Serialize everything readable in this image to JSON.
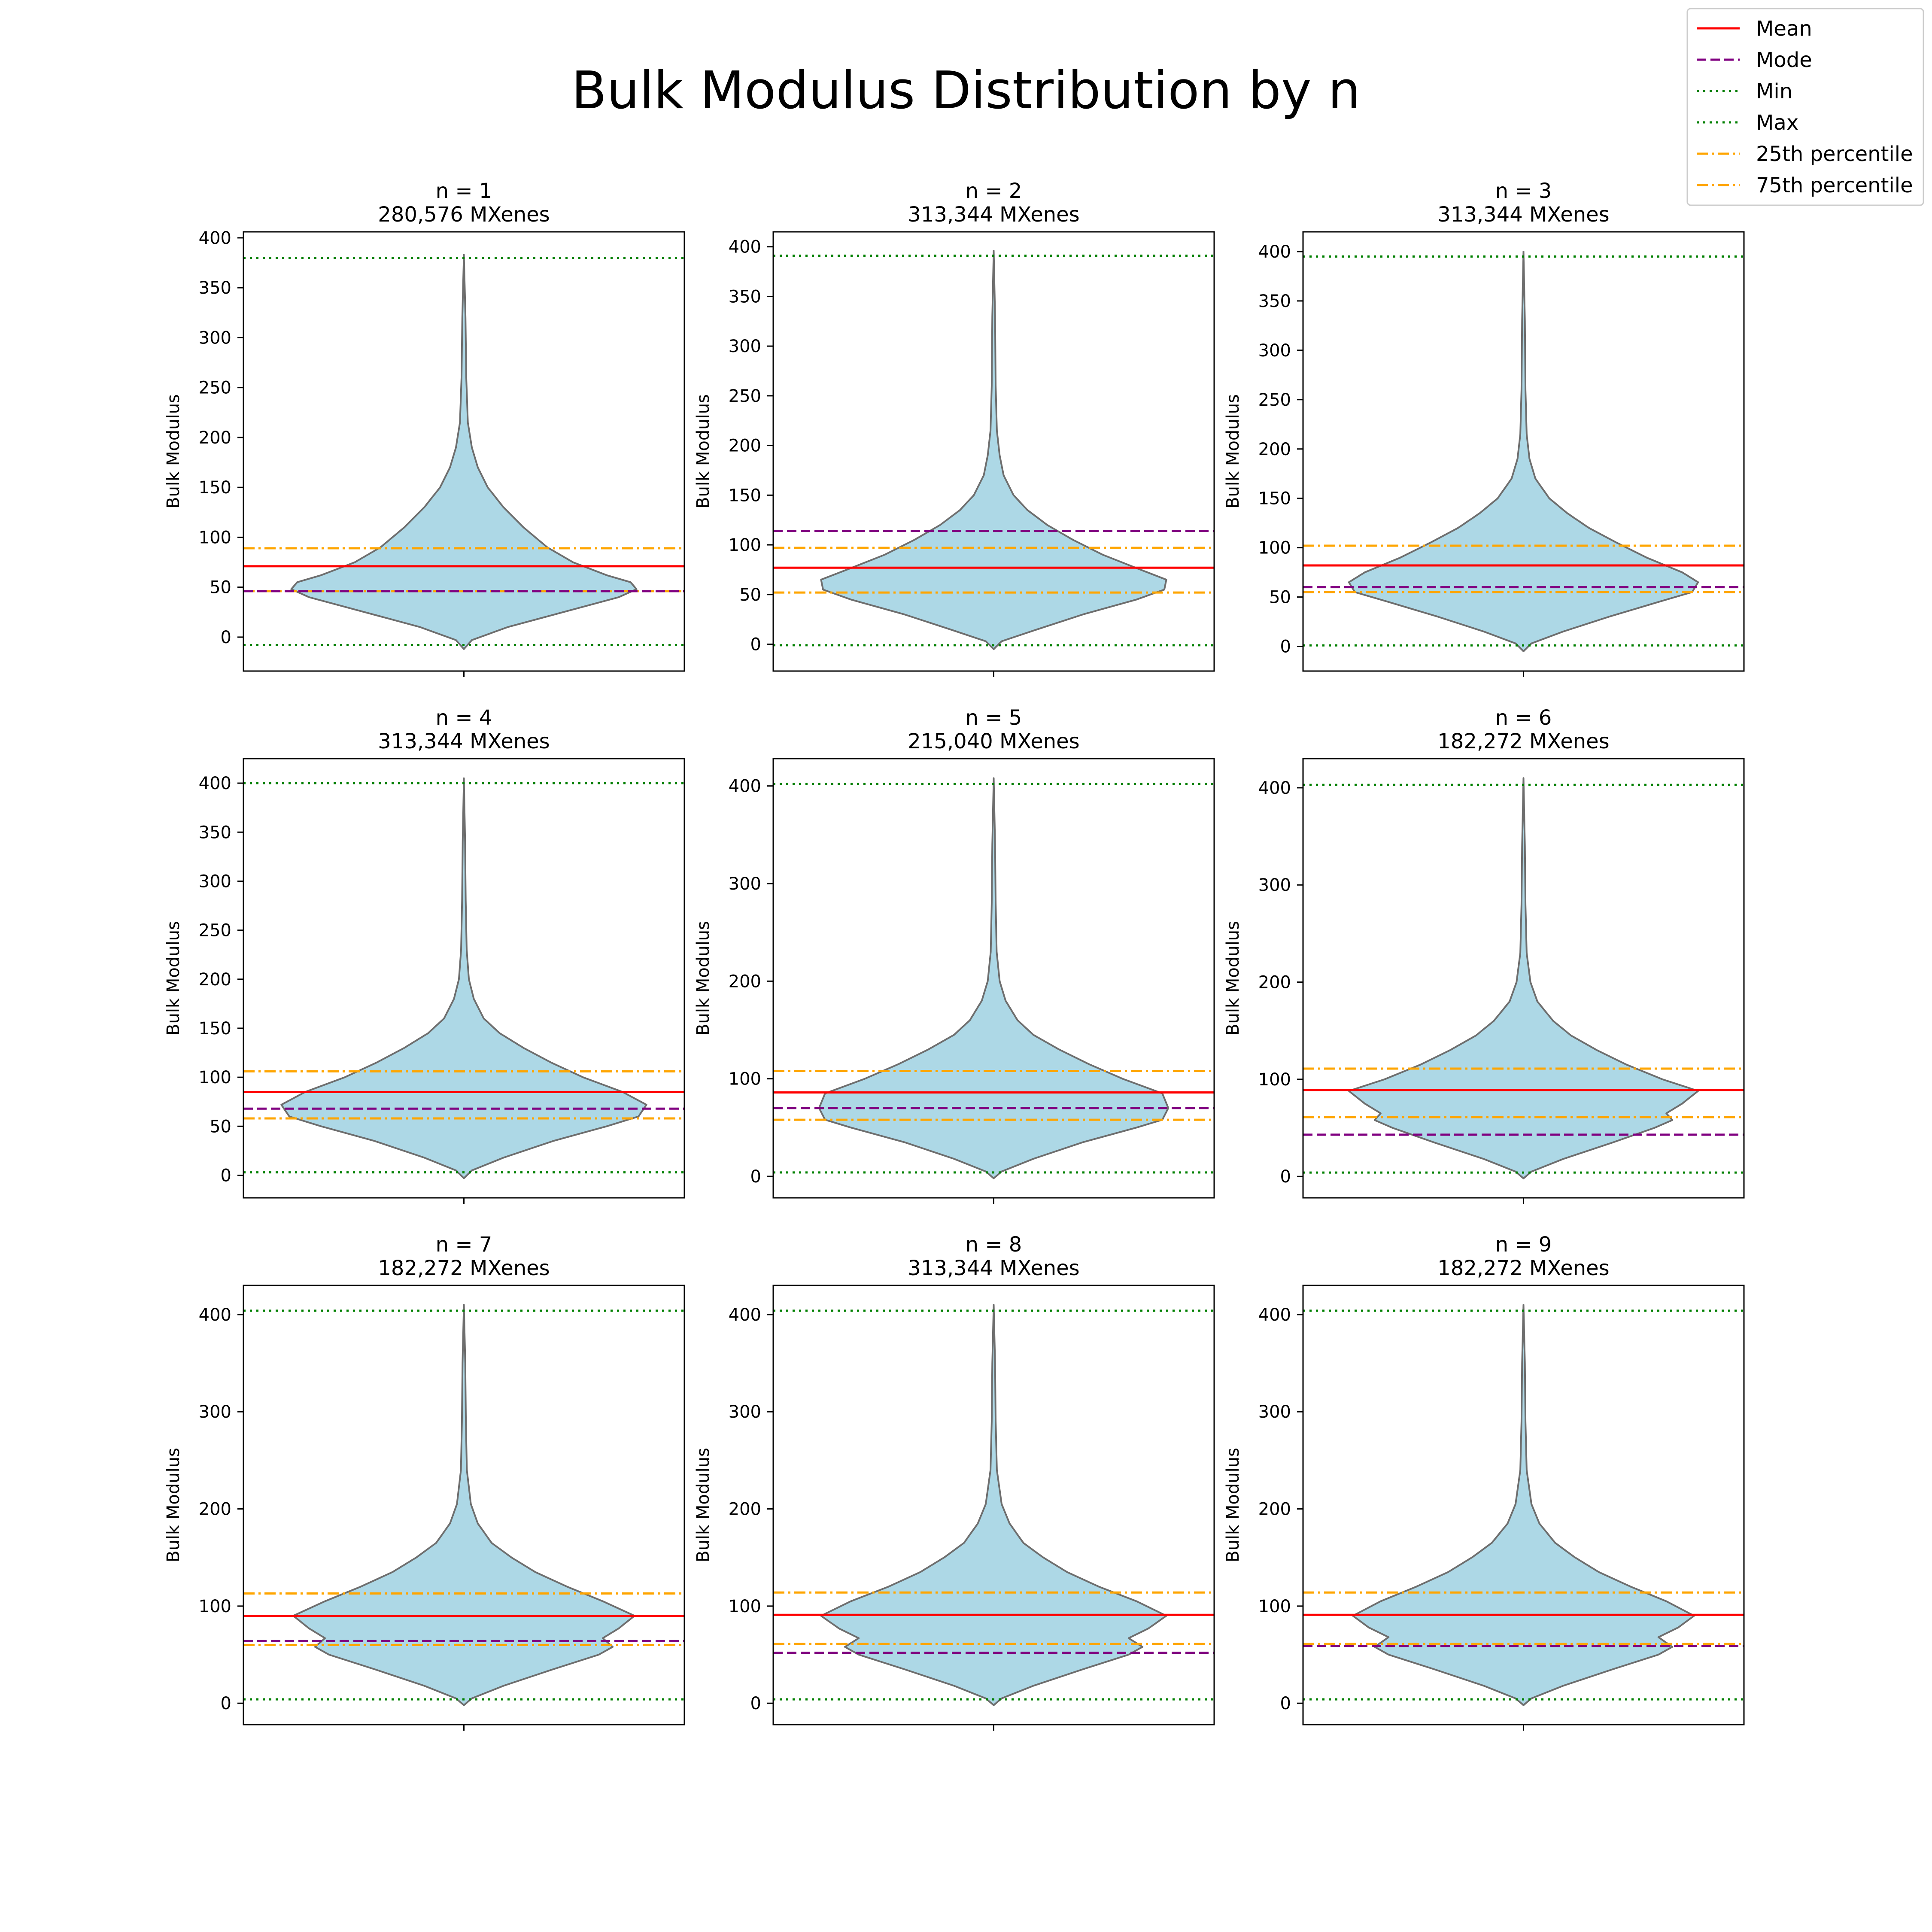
{
  "figure": {
    "suptitle": "Bulk Modulus Distribution by n"
  },
  "legend": {
    "placement": "top-right",
    "entries": [
      {
        "label": "Mean",
        "color": "#ff0000",
        "style": "solid"
      },
      {
        "label": "Mode",
        "color": "#800080",
        "style": "dashed"
      },
      {
        "label": "Min",
        "color": "#008000",
        "style": "dotted"
      },
      {
        "label": "Max",
        "color": "#008000",
        "style": "dotted"
      },
      {
        "label": "25th percentile",
        "color": "#ffa500",
        "style": "dashdot"
      },
      {
        "label": "75th percentile",
        "color": "#ffa500",
        "style": "dashdot"
      }
    ]
  },
  "colors": {
    "violin_fill": "#add8e6",
    "violin_edge": "#6e6e6e",
    "mean": "#ff0000",
    "mode": "#800080",
    "minmax": "#008000",
    "percentile": "#ffa500"
  },
  "chart_data": [
    {
      "type": "violin",
      "title": "n = 1",
      "subtitle": "280,576 MXenes",
      "ylabel": "Bulk Modulus",
      "ylim": [
        -34,
        406
      ],
      "yticks": [
        0,
        50,
        100,
        150,
        200,
        250,
        300,
        350,
        400
      ],
      "grid": false,
      "min": -8,
      "max": 380,
      "mean": 71,
      "mode": 46,
      "p25": 46,
      "p75": 89,
      "shape": [
        [
          -12,
          0.0
        ],
        [
          -3,
          0.04
        ],
        [
          10,
          0.22
        ],
        [
          25,
          0.5
        ],
        [
          40,
          0.78
        ],
        [
          48,
          0.87
        ],
        [
          55,
          0.84
        ],
        [
          62,
          0.72
        ],
        [
          75,
          0.55
        ],
        [
          90,
          0.42
        ],
        [
          110,
          0.3
        ],
        [
          130,
          0.2
        ],
        [
          150,
          0.12
        ],
        [
          170,
          0.07
        ],
        [
          190,
          0.04
        ],
        [
          215,
          0.02
        ],
        [
          260,
          0.012
        ],
        [
          320,
          0.008
        ],
        [
          383,
          0.0
        ]
      ]
    },
    {
      "type": "violin",
      "title": "n = 2",
      "subtitle": "313,344 MXenes",
      "ylabel": "Bulk Modulus",
      "ylim": [
        -27,
        415
      ],
      "yticks": [
        0,
        50,
        100,
        150,
        200,
        250,
        300,
        350,
        400
      ],
      "grid": false,
      "min": -1,
      "max": 391,
      "mean": 77,
      "mode": 114,
      "p25": 52,
      "p75": 97,
      "shape": [
        [
          -5,
          0.0
        ],
        [
          3,
          0.04
        ],
        [
          15,
          0.22
        ],
        [
          30,
          0.45
        ],
        [
          45,
          0.72
        ],
        [
          55,
          0.86
        ],
        [
          65,
          0.87
        ],
        [
          75,
          0.74
        ],
        [
          90,
          0.55
        ],
        [
          105,
          0.4
        ],
        [
          120,
          0.27
        ],
        [
          135,
          0.17
        ],
        [
          150,
          0.1
        ],
        [
          170,
          0.05
        ],
        [
          190,
          0.03
        ],
        [
          215,
          0.016
        ],
        [
          260,
          0.01
        ],
        [
          330,
          0.007
        ],
        [
          396,
          0.0
        ]
      ]
    },
    {
      "type": "violin",
      "title": "n = 3",
      "subtitle": "313,344 MXenes",
      "ylabel": "Bulk Modulus",
      "ylim": [
        -25,
        420
      ],
      "yticks": [
        0,
        50,
        100,
        150,
        200,
        250,
        300,
        350,
        400
      ],
      "grid": false,
      "min": 1,
      "max": 395,
      "mean": 82,
      "mode": 60,
      "p25": 55,
      "p75": 102,
      "shape": [
        [
          -5,
          0.0
        ],
        [
          3,
          0.04
        ],
        [
          15,
          0.2
        ],
        [
          30,
          0.43
        ],
        [
          45,
          0.68
        ],
        [
          55,
          0.85
        ],
        [
          65,
          0.88
        ],
        [
          75,
          0.8
        ],
        [
          90,
          0.62
        ],
        [
          105,
          0.47
        ],
        [
          120,
          0.33
        ],
        [
          135,
          0.22
        ],
        [
          150,
          0.13
        ],
        [
          170,
          0.06
        ],
        [
          190,
          0.03
        ],
        [
          215,
          0.016
        ],
        [
          260,
          0.01
        ],
        [
          330,
          0.007
        ],
        [
          400,
          0.0
        ]
      ]
    },
    {
      "type": "violin",
      "title": "n = 4",
      "subtitle": "313,344 MXenes",
      "ylabel": "Bulk Modulus",
      "ylim": [
        -23,
        425
      ],
      "yticks": [
        0,
        50,
        100,
        150,
        200,
        250,
        300,
        350,
        400
      ],
      "grid": false,
      "min": 3,
      "max": 400,
      "mean": 85,
      "mode": 68,
      "p25": 58,
      "p75": 106,
      "shape": [
        [
          -3,
          0.0
        ],
        [
          5,
          0.04
        ],
        [
          18,
          0.2
        ],
        [
          35,
          0.45
        ],
        [
          50,
          0.72
        ],
        [
          60,
          0.88
        ],
        [
          72,
          0.92
        ],
        [
          85,
          0.8
        ],
        [
          100,
          0.6
        ],
        [
          115,
          0.44
        ],
        [
          130,
          0.3
        ],
        [
          145,
          0.18
        ],
        [
          160,
          0.1
        ],
        [
          180,
          0.05
        ],
        [
          200,
          0.025
        ],
        [
          230,
          0.014
        ],
        [
          280,
          0.009
        ],
        [
          340,
          0.006
        ],
        [
          405,
          0.0
        ]
      ]
    },
    {
      "type": "violin",
      "title": "n = 5",
      "subtitle": "215,040 MXenes",
      "ylabel": "Bulk Modulus",
      "ylim": [
        -22,
        428
      ],
      "yticks": [
        0,
        100,
        200,
        300,
        400
      ],
      "grid": false,
      "min": 4,
      "max": 402,
      "mean": 86,
      "mode": 70,
      "p25": 58,
      "p75": 108,
      "shape": [
        [
          -2,
          0.0
        ],
        [
          5,
          0.04
        ],
        [
          18,
          0.2
        ],
        [
          35,
          0.45
        ],
        [
          50,
          0.72
        ],
        [
          58,
          0.85
        ],
        [
          70,
          0.88
        ],
        [
          85,
          0.85
        ],
        [
          100,
          0.65
        ],
        [
          115,
          0.48
        ],
        [
          130,
          0.33
        ],
        [
          145,
          0.2
        ],
        [
          160,
          0.12
        ],
        [
          180,
          0.06
        ],
        [
          200,
          0.03
        ],
        [
          230,
          0.015
        ],
        [
          280,
          0.01
        ],
        [
          340,
          0.007
        ],
        [
          408,
          0.0
        ]
      ]
    },
    {
      "type": "violin",
      "title": "n = 6",
      "subtitle": "182,272 MXenes",
      "ylabel": "Bulk Modulus",
      "ylim": [
        -22,
        430
      ],
      "yticks": [
        0,
        100,
        200,
        300,
        400
      ],
      "grid": false,
      "min": 4,
      "max": 403,
      "mean": 89,
      "mode": 43,
      "p25": 61,
      "p75": 111,
      "shape": [
        [
          -2,
          0.0
        ],
        [
          5,
          0.04
        ],
        [
          18,
          0.2
        ],
        [
          35,
          0.45
        ],
        [
          50,
          0.66
        ],
        [
          58,
          0.75
        ],
        [
          65,
          0.72
        ],
        [
          75,
          0.8
        ],
        [
          88,
          0.88
        ],
        [
          100,
          0.7
        ],
        [
          115,
          0.52
        ],
        [
          130,
          0.37
        ],
        [
          145,
          0.24
        ],
        [
          160,
          0.15
        ],
        [
          180,
          0.07
        ],
        [
          200,
          0.035
        ],
        [
          230,
          0.016
        ],
        [
          280,
          0.01
        ],
        [
          340,
          0.007
        ],
        [
          410,
          0.0
        ]
      ]
    },
    {
      "type": "violin",
      "title": "n = 7",
      "subtitle": "182,272 MXenes",
      "ylabel": "Bulk Modulus",
      "ylim": [
        -22,
        430
      ],
      "yticks": [
        0,
        100,
        200,
        300,
        400
      ],
      "grid": false,
      "min": 4,
      "max": 404,
      "mean": 90,
      "mode": 64,
      "p25": 60,
      "p75": 113,
      "shape": [
        [
          -2,
          0.0
        ],
        [
          5,
          0.04
        ],
        [
          18,
          0.2
        ],
        [
          35,
          0.45
        ],
        [
          50,
          0.68
        ],
        [
          58,
          0.75
        ],
        [
          67,
          0.7
        ],
        [
          77,
          0.78
        ],
        [
          90,
          0.86
        ],
        [
          105,
          0.7
        ],
        [
          120,
          0.52
        ],
        [
          135,
          0.36
        ],
        [
          150,
          0.24
        ],
        [
          165,
          0.14
        ],
        [
          185,
          0.07
        ],
        [
          205,
          0.035
        ],
        [
          240,
          0.015
        ],
        [
          290,
          0.01
        ],
        [
          350,
          0.007
        ],
        [
          410,
          0.0
        ]
      ]
    },
    {
      "type": "violin",
      "title": "n = 8",
      "subtitle": "313,344 MXenes",
      "ylabel": "Bulk Modulus",
      "ylim": [
        -22,
        430
      ],
      "yticks": [
        0,
        100,
        200,
        300,
        400
      ],
      "grid": false,
      "min": 4,
      "max": 404,
      "mean": 91,
      "mode": 52,
      "p25": 61,
      "p75": 114,
      "shape": [
        [
          -2,
          0.0
        ],
        [
          5,
          0.04
        ],
        [
          18,
          0.2
        ],
        [
          35,
          0.45
        ],
        [
          50,
          0.68
        ],
        [
          58,
          0.75
        ],
        [
          67,
          0.68
        ],
        [
          77,
          0.78
        ],
        [
          90,
          0.87
        ],
        [
          105,
          0.72
        ],
        [
          120,
          0.53
        ],
        [
          135,
          0.37
        ],
        [
          150,
          0.25
        ],
        [
          165,
          0.15
        ],
        [
          185,
          0.08
        ],
        [
          205,
          0.04
        ],
        [
          240,
          0.016
        ],
        [
          290,
          0.01
        ],
        [
          350,
          0.007
        ],
        [
          410,
          0.0
        ]
      ]
    },
    {
      "type": "violin",
      "title": "n = 9",
      "subtitle": "182,272 MXenes",
      "ylabel": "Bulk Modulus",
      "ylim": [
        -22,
        430
      ],
      "yticks": [
        0,
        100,
        200,
        300,
        400
      ],
      "grid": false,
      "min": 4,
      "max": 404,
      "mean": 91,
      "mode": 59,
      "p25": 61,
      "p75": 114,
      "shape": [
        [
          -2,
          0.0
        ],
        [
          5,
          0.04
        ],
        [
          18,
          0.2
        ],
        [
          35,
          0.45
        ],
        [
          50,
          0.68
        ],
        [
          58,
          0.75
        ],
        [
          68,
          0.68
        ],
        [
          78,
          0.78
        ],
        [
          90,
          0.86
        ],
        [
          105,
          0.72
        ],
        [
          120,
          0.54
        ],
        [
          135,
          0.38
        ],
        [
          150,
          0.26
        ],
        [
          165,
          0.16
        ],
        [
          185,
          0.08
        ],
        [
          205,
          0.04
        ],
        [
          240,
          0.016
        ],
        [
          290,
          0.01
        ],
        [
          350,
          0.007
        ],
        [
          410,
          0.0
        ]
      ]
    }
  ]
}
